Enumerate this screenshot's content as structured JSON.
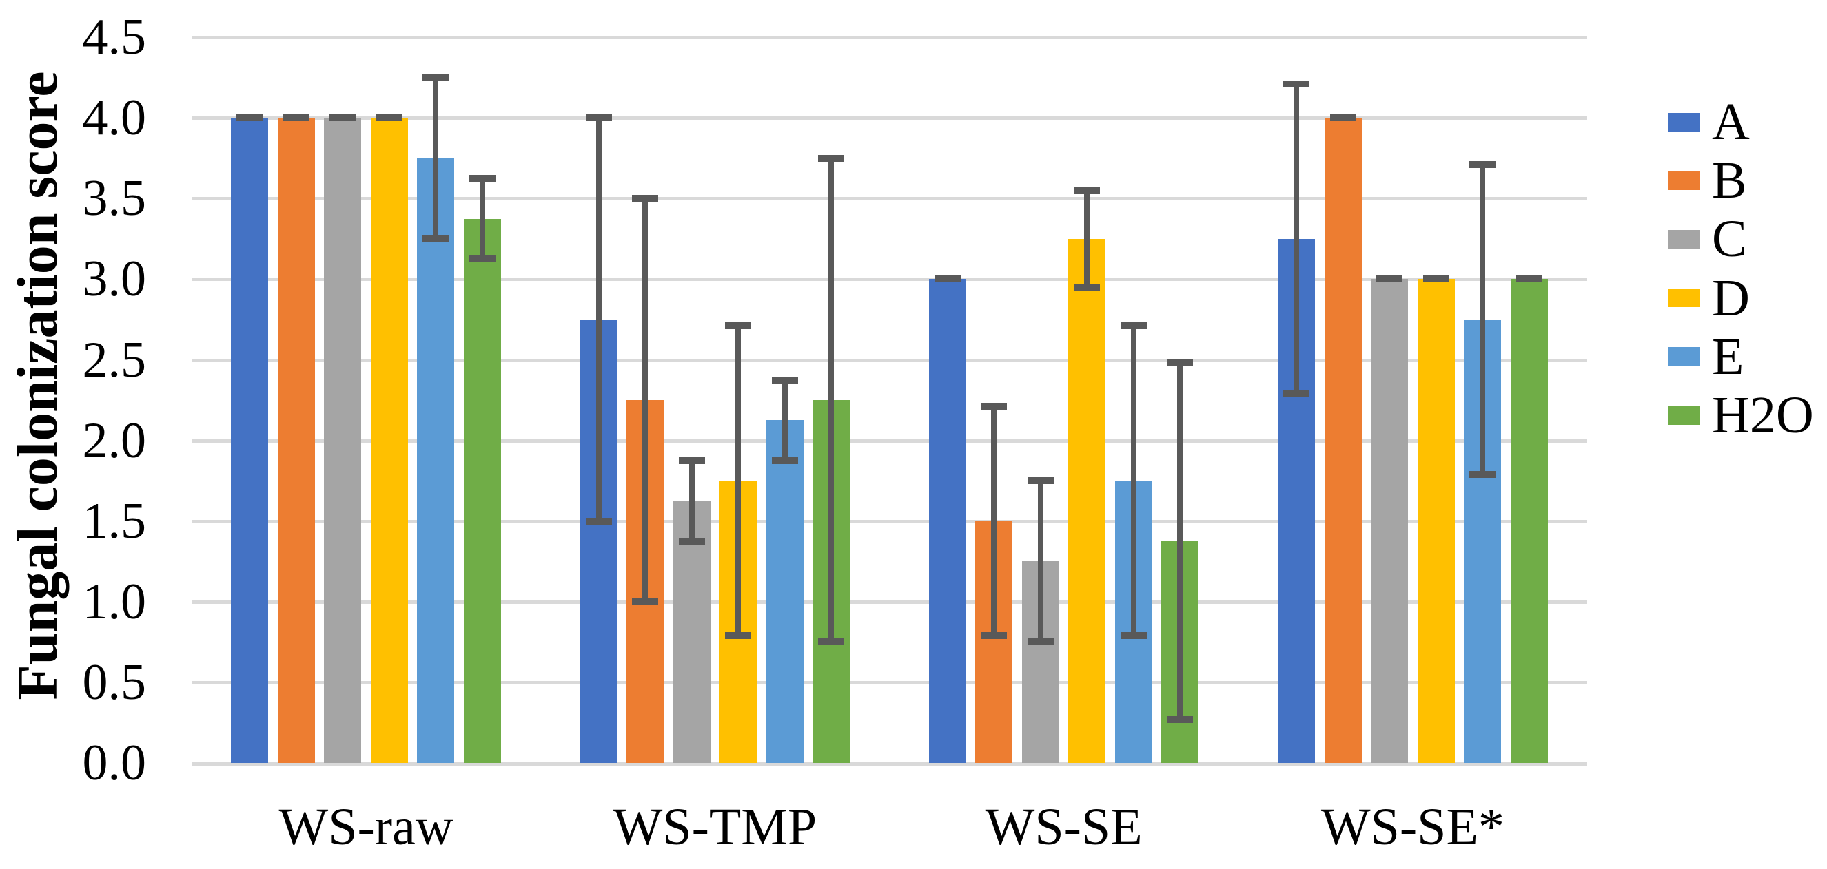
{
  "chart_data": {
    "type": "bar",
    "title": "",
    "ylabel": "Fungal colonization score",
    "xlabel": "",
    "categories": [
      "WS-raw",
      "WS-TMP",
      "WS-SE",
      "WS-SE*"
    ],
    "y_ticks": [
      "0.0",
      "0.5",
      "1.0",
      "1.5",
      "2.0",
      "2.5",
      "3.0",
      "3.5",
      "4.0",
      "4.5"
    ],
    "ylim": [
      0,
      4.5
    ],
    "grid": true,
    "legend_position": "right",
    "gridline_color": "#D9D9D9",
    "error_bar_color": "#595959",
    "series": [
      {
        "name": "A",
        "color": "#4472C4",
        "values": [
          4.0,
          2.75,
          3.0,
          3.25
        ],
        "err_low": [
          4.0,
          1.5,
          3.0,
          2.29
        ],
        "err_high": [
          4.0,
          4.0,
          3.0,
          4.21
        ]
      },
      {
        "name": "B",
        "color": "#ED7D31",
        "values": [
          4.0,
          2.25,
          1.5,
          4.0
        ],
        "err_low": [
          4.0,
          1.0,
          0.79,
          4.0
        ],
        "err_high": [
          4.0,
          3.5,
          2.21,
          4.0
        ]
      },
      {
        "name": "C",
        "color": "#A5A5A5",
        "values": [
          4.0,
          1.625,
          1.25,
          3.0
        ],
        "err_low": [
          4.0,
          1.375,
          0.75,
          3.0
        ],
        "err_high": [
          4.0,
          1.875,
          1.75,
          3.0
        ]
      },
      {
        "name": "D",
        "color": "#FFC000",
        "values": [
          4.0,
          1.75,
          3.25,
          3.0
        ],
        "err_low": [
          4.0,
          0.79,
          2.95,
          3.0
        ],
        "err_high": [
          4.0,
          2.71,
          3.55,
          3.0
        ]
      },
      {
        "name": "E",
        "color": "#5B9BD5",
        "values": [
          3.75,
          2.125,
          1.75,
          2.75
        ],
        "err_low": [
          3.25,
          1.875,
          0.79,
          1.79
        ],
        "err_high": [
          4.25,
          2.375,
          2.71,
          3.71
        ]
      },
      {
        "name": "H2O",
        "color": "#70AD47",
        "values": [
          3.375,
          2.25,
          1.375,
          3.0
        ],
        "err_low": [
          3.125,
          0.75,
          0.27,
          3.0
        ],
        "err_high": [
          3.625,
          3.75,
          2.48,
          3.0
        ]
      }
    ]
  }
}
